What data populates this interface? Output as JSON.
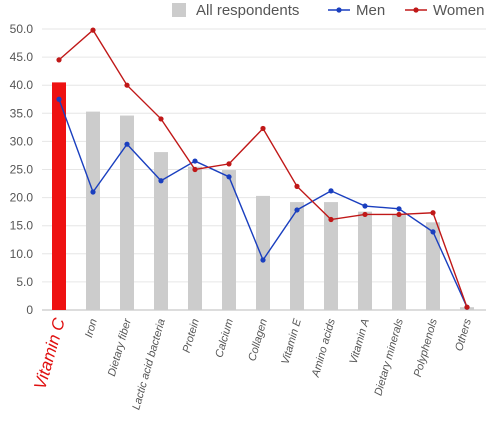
{
  "chart_data": {
    "type": "bar",
    "categories": [
      "Vitamin C",
      "Iron",
      "Dietary fiber",
      "Lactic acid bacteria",
      "Protein",
      "Calcium",
      "Collagen",
      "Vitamin E",
      "Amino acids",
      "Vitamin A",
      "Dietary minerals",
      "Polyphenols",
      "Others"
    ],
    "series": [
      {
        "name": "All respondents",
        "type": "bar",
        "color": "#cccccc",
        "highlight_color": "#ee1111",
        "values": [
          40.5,
          35.3,
          34.6,
          28.1,
          25.5,
          24.9,
          20.3,
          19.2,
          19.2,
          17.5,
          17.0,
          15.6,
          0.5
        ]
      },
      {
        "name": "Men",
        "type": "line",
        "color": "#1a3fbf",
        "values": [
          37.5,
          21.0,
          29.5,
          23.0,
          26.5,
          23.7,
          8.9,
          17.8,
          21.2,
          18.5,
          18.0,
          13.9,
          0.5
        ]
      },
      {
        "name": "Women",
        "type": "line",
        "color": "#c01818",
        "values": [
          44.5,
          49.8,
          40.0,
          34.0,
          25.0,
          26.0,
          32.3,
          22.0,
          16.1,
          17.0,
          17.0,
          17.3,
          0.5
        ]
      }
    ],
    "highlight_category": "Vitamin C",
    "ylim": [
      0,
      50
    ],
    "ytick_step": 5,
    "ytick_labels": [
      "0",
      "5.0",
      "10.0",
      "15.0",
      "20.0",
      "25.0",
      "30.0",
      "35.0",
      "40.0",
      "45.0",
      "50.0"
    ],
    "grid": true,
    "legend_position": "top-right",
    "title": "",
    "xlabel": "",
    "ylabel": ""
  }
}
